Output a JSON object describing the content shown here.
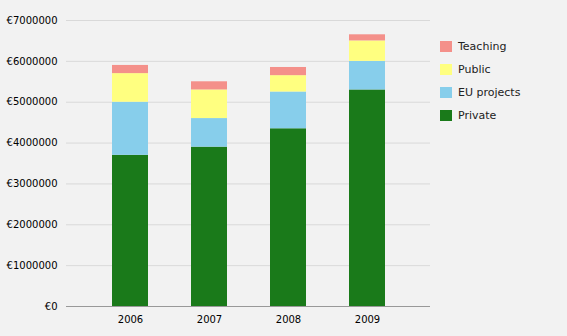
{
  "chart_data": {
    "type": "bar",
    "stacked": true,
    "categories": [
      "2006",
      "2007",
      "2008",
      "2009"
    ],
    "series": [
      {
        "name": "Private",
        "color": "#1a7a1a",
        "values": [
          3700000,
          3900000,
          4350000,
          5300000
        ]
      },
      {
        "name": "EU projects",
        "color": "#87ceeb",
        "values": [
          1300000,
          700000,
          900000,
          700000
        ]
      },
      {
        "name": "Public",
        "color": "#ffff80",
        "values": [
          700000,
          700000,
          400000,
          500000
        ]
      },
      {
        "name": "Teaching",
        "color": "#f4908a",
        "values": [
          200000,
          200000,
          200000,
          150000
        ]
      }
    ],
    "ylim": [
      0,
      7000000
    ],
    "yticks": [
      {
        "value": 0,
        "label": "€0"
      },
      {
        "value": 1000000,
        "label": "€1000000"
      },
      {
        "value": 2000000,
        "label": "€2000000"
      },
      {
        "value": 3000000,
        "label": "€3000000"
      },
      {
        "value": 4000000,
        "label": "€4000000"
      },
      {
        "value": 5000000,
        "label": "€5000000"
      },
      {
        "value": 6000000,
        "label": "€6000000"
      },
      {
        "value": 7000000,
        "label": "€7000000"
      }
    ],
    "grid": true,
    "legend": "right"
  }
}
